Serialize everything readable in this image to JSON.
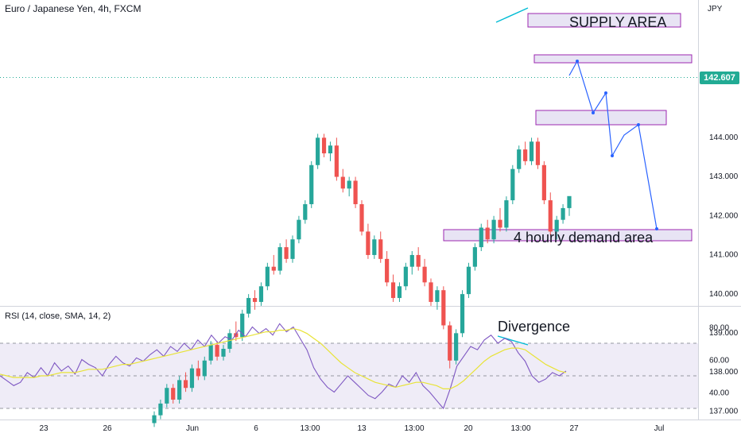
{
  "header": {
    "symbol_title": "Euro / Japanese Yen, 4h, FXCM"
  },
  "rsi_header": {
    "title": "RSI (14, close, SMA, 14, 2)"
  },
  "colors": {
    "up": "#26a69a",
    "down": "#ef5350",
    "rsi": "#7e57c2",
    "rsi_ma": "#e8e337",
    "zone_fill": "#e8e4f4",
    "zone_border": "#9c27b0",
    "arrow": "#2962ff",
    "divergence": "#00bcd4",
    "last_price": "#22ab94"
  },
  "chart_data": [
    {
      "type": "candlestick",
      "title": "Euro / Japanese Yen, 4h, FXCM",
      "currency_label": "JPY",
      "y_ticks": [
        "144.000",
        "143.000",
        "142.000",
        "141.000",
        "140.000",
        "139.000",
        "138.000",
        "137.000"
      ],
      "ylim": [
        136.8,
        144.3
      ],
      "x_ticks": [
        "23",
        "26",
        "Jun",
        "6",
        "13:00",
        "13",
        "13:00",
        "20",
        "13:00",
        "27",
        "Jul"
      ],
      "last_price": "142.607",
      "candles": [
        [
          136.8,
          137.1,
          136.7,
          137.0
        ],
        [
          137.0,
          137.4,
          136.9,
          137.3
        ],
        [
          137.3,
          137.8,
          137.2,
          137.7
        ],
        [
          137.7,
          137.8,
          137.3,
          137.4
        ],
        [
          137.4,
          138.0,
          137.3,
          137.9
        ],
        [
          137.9,
          138.1,
          137.6,
          137.7
        ],
        [
          137.7,
          138.3,
          137.6,
          138.2
        ],
        [
          138.2,
          138.4,
          137.9,
          138.0
        ],
        [
          138.0,
          138.5,
          137.9,
          138.4
        ],
        [
          138.4,
          138.9,
          138.3,
          138.8
        ],
        [
          138.8,
          138.9,
          138.4,
          138.5
        ],
        [
          138.5,
          138.8,
          138.4,
          138.7
        ],
        [
          138.7,
          139.2,
          138.6,
          139.1
        ],
        [
          139.1,
          139.4,
          138.9,
          139.0
        ],
        [
          139.0,
          139.7,
          138.9,
          139.6
        ],
        [
          139.6,
          140.1,
          139.5,
          140.0
        ],
        [
          140.0,
          140.2,
          139.7,
          139.9
        ],
        [
          139.9,
          140.4,
          139.8,
          140.3
        ],
        [
          140.3,
          140.9,
          140.2,
          140.8
        ],
        [
          140.8,
          141.1,
          140.6,
          140.7
        ],
        [
          140.7,
          141.4,
          140.6,
          141.3
        ],
        [
          141.3,
          141.5,
          140.9,
          141.0
        ],
        [
          141.0,
          141.6,
          140.9,
          141.5
        ],
        [
          141.5,
          142.1,
          141.4,
          142.0
        ],
        [
          142.0,
          142.5,
          141.9,
          142.4
        ],
        [
          142.4,
          143.5,
          142.3,
          143.4
        ],
        [
          143.4,
          144.2,
          143.3,
          144.1
        ],
        [
          144.1,
          144.2,
          143.6,
          143.7
        ],
        [
          143.7,
          144.0,
          143.5,
          143.9
        ],
        [
          143.9,
          144.1,
          143.0,
          143.1
        ],
        [
          143.1,
          143.3,
          142.7,
          142.8
        ],
        [
          142.8,
          143.1,
          142.6,
          143.0
        ],
        [
          143.0,
          143.1,
          142.3,
          142.4
        ],
        [
          142.4,
          142.5,
          141.6,
          141.7
        ],
        [
          141.7,
          141.9,
          141.0,
          141.1
        ],
        [
          141.1,
          141.6,
          141.0,
          141.5
        ],
        [
          141.5,
          141.7,
          140.9,
          141.0
        ],
        [
          141.0,
          141.2,
          140.3,
          140.4
        ],
        [
          140.4,
          140.6,
          139.9,
          140.0
        ],
        [
          140.0,
          140.4,
          139.9,
          140.3
        ],
        [
          140.3,
          140.9,
          140.2,
          140.8
        ],
        [
          140.8,
          141.2,
          140.6,
          141.1
        ],
        [
          141.1,
          141.3,
          140.7,
          140.8
        ],
        [
          140.8,
          141.0,
          140.3,
          140.4
        ],
        [
          140.4,
          140.5,
          139.8,
          139.9
        ],
        [
          139.9,
          140.3,
          139.7,
          140.2
        ],
        [
          140.2,
          140.3,
          139.2,
          139.3
        ],
        [
          139.3,
          139.4,
          138.2,
          138.4
        ],
        [
          138.4,
          139.2,
          138.3,
          139.1
        ],
        [
          139.1,
          140.2,
          139.0,
          140.1
        ],
        [
          140.1,
          140.9,
          140.0,
          140.8
        ],
        [
          140.8,
          141.4,
          140.7,
          141.3
        ],
        [
          141.3,
          141.9,
          141.2,
          141.8
        ],
        [
          141.8,
          142.0,
          141.4,
          141.5
        ],
        [
          141.5,
          142.1,
          141.4,
          142.0
        ],
        [
          142.0,
          142.3,
          141.7,
          141.8
        ],
        [
          141.8,
          142.6,
          141.7,
          142.5
        ],
        [
          142.5,
          143.4,
          142.4,
          143.3
        ],
        [
          143.3,
          143.9,
          143.2,
          143.8
        ],
        [
          143.8,
          144.0,
          143.4,
          143.5
        ],
        [
          143.5,
          144.1,
          143.4,
          144.0
        ],
        [
          144.0,
          144.1,
          143.3,
          143.4
        ],
        [
          143.4,
          143.5,
          142.4,
          142.5
        ],
        [
          142.5,
          142.7,
          141.6,
          141.7
        ],
        [
          141.7,
          142.1,
          141.5,
          142.0
        ],
        [
          142.0,
          142.4,
          141.9,
          142.3
        ],
        [
          142.3,
          142.6,
          142.1,
          142.607
        ]
      ]
    },
    {
      "type": "line",
      "title": "RSI (14, close, SMA, 14, 2)",
      "y_ticks": [
        "80.00",
        "60.00",
        "40.00"
      ],
      "ylim": [
        24,
        86
      ],
      "series": [
        {
          "role": "rsi",
          "values": [
            50,
            47,
            44,
            46,
            52,
            49,
            55,
            50,
            58,
            53,
            56,
            51,
            60,
            57,
            55,
            50,
            57,
            62,
            58,
            56,
            61,
            59,
            63,
            66,
            62,
            68,
            65,
            70,
            66,
            72,
            68,
            75,
            70,
            74,
            72,
            78,
            74,
            80,
            76,
            79,
            75,
            82,
            77,
            80,
            73,
            66,
            55,
            48,
            43,
            40,
            45,
            50,
            46,
            42,
            38,
            36,
            40,
            45,
            43,
            50,
            46,
            52,
            44,
            40,
            35,
            30,
            42,
            56,
            62,
            68,
            66,
            72,
            75,
            70,
            73,
            71,
            64,
            59,
            50,
            46,
            48,
            52,
            50,
            53
          ]
        },
        {
          "role": "rsi-ma",
          "values": [
            51,
            50,
            49,
            49,
            49,
            49,
            50,
            50,
            51,
            52,
            52,
            52,
            53,
            54,
            54,
            54,
            55,
            56,
            57,
            57,
            58,
            59,
            60,
            61,
            62,
            63,
            64,
            65,
            66,
            67,
            68,
            69,
            70,
            71,
            72,
            73,
            74,
            75,
            76,
            77,
            77,
            78,
            78,
            79,
            78,
            76,
            73,
            70,
            66,
            62,
            58,
            55,
            52,
            50,
            48,
            46,
            45,
            44,
            43,
            44,
            45,
            46,
            46,
            45,
            44,
            42,
            42,
            44,
            47,
            51,
            55,
            59,
            62,
            64,
            66,
            67,
            67,
            66,
            63,
            60,
            57,
            55,
            53,
            52
          ]
        }
      ]
    }
  ],
  "annotations": {
    "supply": "SUPPLY AREA",
    "demand": "4 hourly demand area",
    "divergence": "Divergence"
  }
}
